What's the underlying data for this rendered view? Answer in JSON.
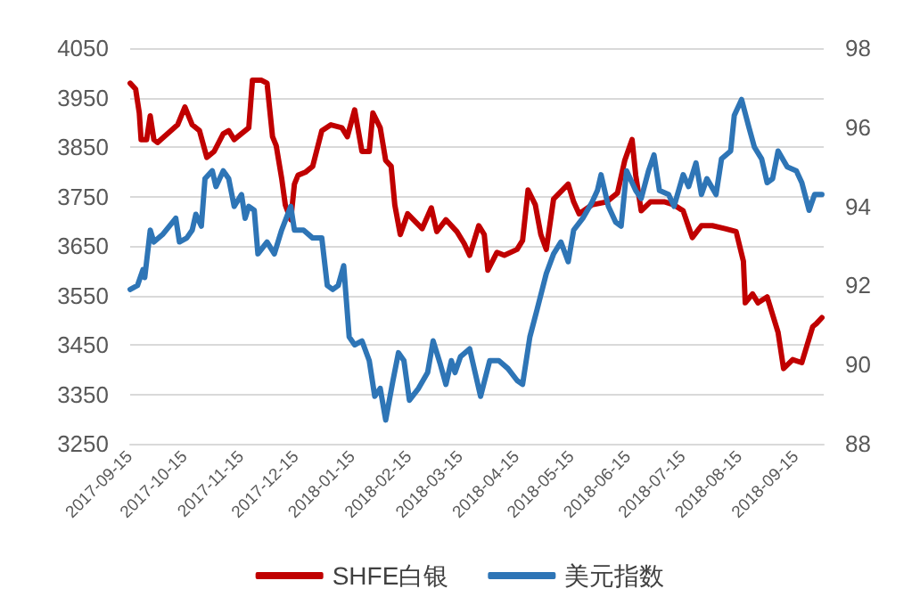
{
  "chart_data": {
    "type": "line",
    "xlim": [
      "2017-09-15",
      "2018-09-30"
    ],
    "xticks": [
      "2017-09-15",
      "2017-10-15",
      "2017-11-15",
      "2017-12-15",
      "2018-01-15",
      "2018-02-15",
      "2018-03-15",
      "2018-04-15",
      "2018-05-15",
      "2018-06-15",
      "2018-07-15",
      "2018-08-15",
      "2018-09-15"
    ],
    "ylim": [
      3250,
      4050
    ],
    "yticks": [
      3250,
      3350,
      3450,
      3550,
      3650,
      3750,
      3850,
      3950,
      4050
    ],
    "y2lim": [
      88,
      98
    ],
    "y2ticks": [
      88,
      90,
      92,
      94,
      96,
      98
    ],
    "grid": "y",
    "legend": "bottom",
    "marker": "none",
    "line_style": "solid",
    "series": [
      {
        "name": "SHFE白银",
        "color": "#c00000",
        "x": [
          "2017-09-15",
          "2017-09-18",
          "2017-09-20",
          "2017-09-21",
          "2017-09-24",
          "2017-09-26",
          "2017-09-28",
          "2017-09-30",
          "2017-10-11",
          "2017-10-15",
          "2017-10-19",
          "2017-10-23",
          "2017-10-27",
          "2017-10-31",
          "2017-11-05",
          "2017-11-08",
          "2017-11-11",
          "2017-11-19",
          "2017-11-21",
          "2017-11-26",
          "2017-11-29",
          "2017-12-02",
          "2017-12-04",
          "2017-12-07",
          "2017-12-09",
          "2017-12-12",
          "2017-12-14",
          "2017-12-16",
          "2017-12-20",
          "2017-12-24",
          "2017-12-29",
          "2018-01-03",
          "2018-01-09",
          "2018-01-12",
          "2018-01-16",
          "2018-01-20",
          "2018-01-24",
          "2018-01-26",
          "2018-01-30",
          "2018-02-02",
          "2018-02-05",
          "2018-02-07",
          "2018-02-10",
          "2018-02-14",
          "2018-02-22",
          "2018-02-27",
          "2018-03-02",
          "2018-03-07",
          "2018-03-13",
          "2018-03-17",
          "2018-03-20",
          "2018-03-25",
          "2018-03-28",
          "2018-03-30",
          "2018-04-04",
          "2018-04-08",
          "2018-04-15",
          "2018-04-18",
          "2018-04-21",
          "2018-04-25",
          "2018-04-28",
          "2018-05-01",
          "2018-05-05",
          "2018-05-13",
          "2018-05-16",
          "2018-05-19",
          "2018-05-26",
          "2018-06-03",
          "2018-06-09",
          "2018-06-13",
          "2018-06-17",
          "2018-06-19",
          "2018-06-22",
          "2018-06-27",
          "2018-07-05",
          "2018-07-10",
          "2018-07-15",
          "2018-07-20",
          "2018-07-25",
          "2018-07-31",
          "2018-08-07",
          "2018-08-13",
          "2018-08-17",
          "2018-08-18",
          "2018-08-22",
          "2018-08-25",
          "2018-08-30",
          "2018-09-02",
          "2018-09-05",
          "2018-09-08",
          "2018-09-13",
          "2018-09-18",
          "2018-09-22",
          "2018-09-24",
          "2018-09-26",
          "2018-09-29"
        ],
        "values": [
          3979,
          3967,
          3919,
          3865,
          3865,
          3913,
          3865,
          3859,
          3895,
          3931,
          3895,
          3883,
          3829,
          3841,
          3877,
          3883,
          3865,
          3889,
          3985,
          3985,
          3979,
          3871,
          3853,
          3787,
          3733,
          3703,
          3775,
          3793,
          3799,
          3811,
          3883,
          3895,
          3889,
          3871,
          3925,
          3841,
          3841,
          3919,
          3889,
          3823,
          3811,
          3733,
          3673,
          3715,
          3685,
          3727,
          3679,
          3703,
          3679,
          3655,
          3631,
          3691,
          3673,
          3601,
          3637,
          3631,
          3643,
          3661,
          3763,
          3733,
          3673,
          3643,
          3745,
          3775,
          3739,
          3715,
          3733,
          3739,
          3757,
          3823,
          3865,
          3793,
          3721,
          3739,
          3739,
          3733,
          3721,
          3667,
          3691,
          3691,
          3685,
          3679,
          3619,
          3535,
          3553,
          3535,
          3547,
          3511,
          3475,
          3402,
          3420,
          3414,
          3463,
          3487,
          3493,
          3505
        ]
      },
      {
        "name": "美元指数",
        "color": "#2e75b6",
        "axis": "y2",
        "x": [
          "2017-09-15",
          "2017-09-19",
          "2017-09-22",
          "2017-09-23",
          "2017-09-26",
          "2017-09-28",
          "2017-10-03",
          "2017-10-10",
          "2017-10-12",
          "2017-10-16",
          "2017-10-19",
          "2017-10-21",
          "2017-10-24",
          "2017-10-26",
          "2017-10-30",
          "2017-11-01",
          "2017-11-05",
          "2017-11-08",
          "2017-11-11",
          "2017-11-15",
          "2017-11-17",
          "2017-11-19",
          "2017-11-22",
          "2017-11-24",
          "2017-11-29",
          "2017-12-03",
          "2017-12-07",
          "2017-12-12",
          "2017-12-14",
          "2017-12-19",
          "2017-12-24",
          "2017-12-29",
          "2018-01-01",
          "2018-01-04",
          "2018-01-07",
          "2018-01-10",
          "2018-01-13",
          "2018-01-16",
          "2018-01-20",
          "2018-01-24",
          "2018-01-27",
          "2018-01-30",
          "2018-02-02",
          "2018-02-06",
          "2018-02-09",
          "2018-02-12",
          "2018-02-15",
          "2018-02-20",
          "2018-02-25",
          "2018-02-28",
          "2018-03-04",
          "2018-03-07",
          "2018-03-10",
          "2018-03-12",
          "2018-03-15",
          "2018-03-20",
          "2018-03-23",
          "2018-03-26",
          "2018-03-31",
          "2018-04-05",
          "2018-04-10",
          "2018-04-15",
          "2018-04-18",
          "2018-04-22",
          "2018-04-26",
          "2018-05-01",
          "2018-05-05",
          "2018-05-09",
          "2018-05-13",
          "2018-05-16",
          "2018-05-21",
          "2018-05-26",
          "2018-05-29",
          "2018-05-31",
          "2018-06-04",
          "2018-06-08",
          "2018-06-11",
          "2018-06-14",
          "2018-06-19",
          "2018-06-22",
          "2018-06-26",
          "2018-06-29",
          "2018-07-02",
          "2018-07-07",
          "2018-07-10",
          "2018-07-15",
          "2018-07-18",
          "2018-07-22",
          "2018-07-25",
          "2018-07-28",
          "2018-08-02",
          "2018-08-05",
          "2018-08-10",
          "2018-08-12",
          "2018-08-16",
          "2018-08-20",
          "2018-08-23",
          "2018-08-27",
          "2018-08-30",
          "2018-09-02",
          "2018-09-05",
          "2018-09-10",
          "2018-09-15",
          "2018-09-18",
          "2018-09-22",
          "2018-09-25",
          "2018-09-29"
        ],
        "values": [
          91.9,
          92.0,
          92.4,
          92.2,
          93.4,
          93.1,
          93.3,
          93.7,
          93.1,
          93.2,
          93.4,
          93.8,
          93.5,
          94.7,
          94.9,
          94.5,
          94.9,
          94.7,
          94.0,
          94.3,
          93.7,
          94.0,
          93.9,
          92.8,
          93.1,
          92.8,
          93.4,
          94.0,
          93.4,
          93.4,
          93.2,
          93.2,
          92.0,
          91.9,
          92.0,
          92.5,
          90.7,
          90.5,
          90.6,
          90.1,
          89.2,
          89.4,
          88.6,
          89.6,
          90.3,
          90.1,
          89.1,
          89.4,
          89.8,
          90.6,
          90.0,
          89.5,
          90.1,
          89.8,
          90.2,
          90.4,
          89.8,
          89.2,
          90.1,
          90.1,
          89.9,
          89.6,
          89.5,
          90.7,
          91.4,
          92.3,
          92.8,
          93.1,
          92.6,
          93.4,
          93.7,
          94.1,
          94.4,
          94.8,
          94.0,
          93.6,
          93.5,
          94.9,
          94.4,
          94.2,
          94.9,
          95.3,
          94.4,
          94.3,
          94.0,
          94.8,
          94.5,
          95.1,
          94.3,
          94.7,
          94.3,
          95.2,
          95.4,
          96.3,
          96.7,
          96.0,
          95.5,
          95.2,
          94.6,
          94.7,
          95.4,
          95.0,
          94.9,
          94.6,
          93.9,
          94.3,
          94.3
        ]
      }
    ]
  }
}
